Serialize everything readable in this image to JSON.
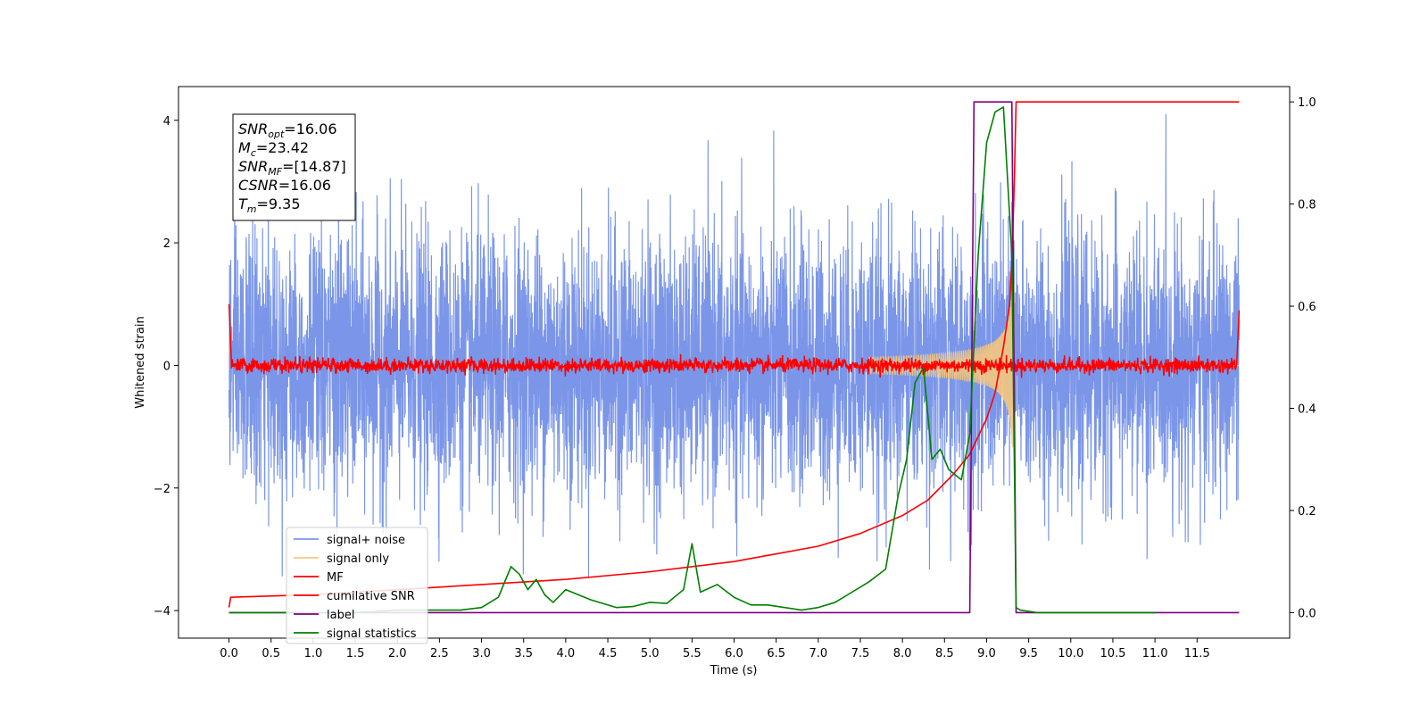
{
  "chart_data": {
    "type": "line",
    "title": "",
    "xlabel": "Time (s)",
    "ylabel": "Whitened strain",
    "xlim": [
      -0.6,
      12.6
    ],
    "ylim_left": [
      -4.45,
      4.55
    ],
    "ylim_right": [
      -0.05,
      1.03
    ],
    "x_ticks": [
      0.0,
      0.5,
      1.0,
      1.5,
      2.0,
      2.5,
      3.0,
      3.5,
      4.0,
      4.5,
      5.0,
      5.5,
      6.0,
      6.5,
      7.0,
      7.5,
      8.0,
      8.5,
      9.0,
      9.5,
      10.0,
      10.5,
      11.0,
      11.5
    ],
    "x_tick_labels": [
      "0.0",
      "0.5",
      "1.0",
      "1.5",
      "2.0",
      "2.5",
      "3.0",
      "3.5",
      "4.0",
      "4.5",
      "5.0",
      "5.5",
      "6.0",
      "6.5",
      "7.0",
      "7.5",
      "8.0",
      "8.5",
      "9.0",
      "9.5",
      "10.0",
      "10.5",
      "11.0",
      "11.5"
    ],
    "y_left_ticks": [
      -4,
      -2,
      0,
      2,
      4
    ],
    "y_left_tick_labels": [
      "−4",
      "−2",
      "0",
      "2",
      "4"
    ],
    "y_right_ticks": [
      0.0,
      0.2,
      0.4,
      0.6,
      0.8,
      1.0
    ],
    "y_right_tick_labels": [
      "0.0",
      "0.2",
      "0.4",
      "0.6",
      "0.8",
      "1.0"
    ],
    "grid": false,
    "legend_position": "lower-left",
    "annotation": {
      "lines": [
        {
          "sym": "SNR",
          "sub": "opt",
          "text": "=16.06"
        },
        {
          "sym": "M",
          "sub": "c",
          "text": "=23.42"
        },
        {
          "sym": "SNR",
          "sub": "MF",
          "text": "=[14.87]"
        },
        {
          "sym": "CSNR",
          "sub": "",
          "text": "=16.06"
        },
        {
          "sym": "T",
          "sub": "m",
          "text": "=9.35"
        }
      ]
    },
    "series": [
      {
        "name": "signal+ noise",
        "axis": "left",
        "color": "#7b96e8",
        "kind": "noise",
        "x_range": [
          0,
          12
        ],
        "amplitude_std": 1.1
      },
      {
        "name": "signal only",
        "axis": "left",
        "color": "#f5c77e",
        "kind": "chirp",
        "merger_time": 9.33,
        "peak_amplitude": 1.35
      },
      {
        "name": "MF",
        "axis": "left",
        "color": "#ff0000",
        "kind": "mf",
        "x_range": [
          0,
          12
        ]
      },
      {
        "name": "cumilative SNR",
        "axis": "right",
        "color": "#ff0000",
        "x": [
          0.0,
          0.02,
          1.0,
          2.0,
          3.0,
          4.0,
          5.0,
          6.0,
          6.5,
          7.0,
          7.5,
          8.0,
          8.3,
          8.6,
          8.8,
          9.0,
          9.1,
          9.2,
          9.27,
          9.3,
          9.33,
          9.35,
          12.0
        ],
        "y": [
          0.01,
          0.03,
          0.035,
          0.045,
          0.055,
          0.065,
          0.08,
          0.1,
          0.115,
          0.13,
          0.155,
          0.19,
          0.22,
          0.27,
          0.31,
          0.38,
          0.43,
          0.52,
          0.6,
          0.68,
          0.85,
          1.0,
          1.0
        ]
      },
      {
        "name": "label",
        "axis": "right",
        "color": "#800080",
        "x": [
          0.0,
          8.8,
          8.85,
          9.3,
          9.35,
          12.0
        ],
        "y": [
          0.0,
          0.0,
          1.0,
          1.0,
          0.0,
          0.0
        ]
      },
      {
        "name": "signal statistics",
        "axis": "right",
        "color": "#008000",
        "x": [
          0.0,
          0.5,
          1.0,
          1.5,
          2.0,
          2.5,
          2.75,
          3.0,
          3.2,
          3.35,
          3.45,
          3.55,
          3.65,
          3.75,
          3.85,
          4.0,
          4.3,
          4.6,
          4.8,
          5.0,
          5.2,
          5.4,
          5.5,
          5.6,
          5.8,
          6.0,
          6.2,
          6.4,
          6.6,
          6.8,
          7.0,
          7.2,
          7.4,
          7.6,
          7.8,
          7.95,
          8.05,
          8.15,
          8.25,
          8.35,
          8.45,
          8.55,
          8.7,
          8.8,
          8.9,
          9.0,
          9.1,
          9.2,
          9.3,
          9.35,
          9.4,
          9.6,
          11.0
        ],
        "y": [
          0.0,
          0.0,
          0.0,
          0.0,
          0.005,
          0.005,
          0.005,
          0.01,
          0.03,
          0.09,
          0.075,
          0.045,
          0.065,
          0.035,
          0.02,
          0.045,
          0.025,
          0.01,
          0.012,
          0.02,
          0.018,
          0.045,
          0.135,
          0.04,
          0.055,
          0.03,
          0.015,
          0.015,
          0.01,
          0.005,
          0.01,
          0.02,
          0.04,
          0.06,
          0.085,
          0.23,
          0.3,
          0.45,
          0.48,
          0.3,
          0.32,
          0.28,
          0.26,
          0.35,
          0.7,
          0.92,
          0.98,
          0.99,
          0.7,
          0.01,
          0.005,
          0.0,
          0.0
        ]
      }
    ]
  }
}
